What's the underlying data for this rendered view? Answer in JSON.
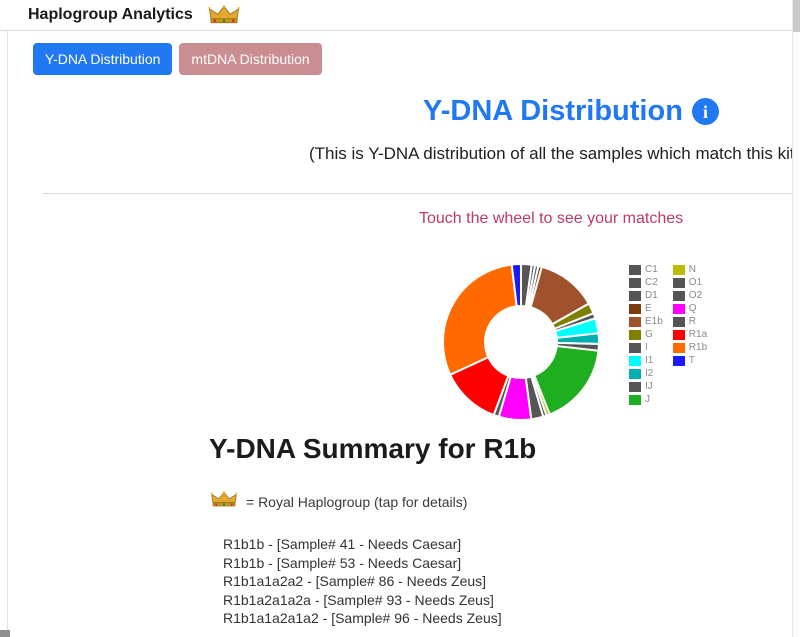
{
  "app": {
    "title": "Haplogroup Analytics"
  },
  "tabs": {
    "ydna": "Y-DNA Distribution",
    "mtdna": "mtDNA Distribution"
  },
  "section": {
    "title": "Y-DNA Distribution",
    "subtitle": "(This is Y-DNA distribution of all the samples which match this kit)"
  },
  "chart_data": {
    "type": "pie",
    "style": "donut",
    "title": "Touch the wheel to see your matches",
    "legend_position": "right",
    "legend_split": 11,
    "units": "percent of matching samples (estimated from arc angles)",
    "series": [
      {
        "name": "C1",
        "value": 2.2,
        "color": "#555555"
      },
      {
        "name": "C2",
        "value": 0.7,
        "color": "#555555"
      },
      {
        "name": "D1",
        "value": 0.7,
        "color": "#555555"
      },
      {
        "name": "E",
        "value": 0.7,
        "color": "#7a3b0e"
      },
      {
        "name": "E1b",
        "value": 12.5,
        "color": "#a0522d"
      },
      {
        "name": "G",
        "value": 2.2,
        "color": "#808000"
      },
      {
        "name": "I",
        "value": 1.1,
        "color": "#555555"
      },
      {
        "name": "I1",
        "value": 3.1,
        "color": "#00ffff"
      },
      {
        "name": "I2",
        "value": 2.2,
        "color": "#00b0b0"
      },
      {
        "name": "IJ",
        "value": 1.4,
        "color": "#555555"
      },
      {
        "name": "J",
        "value": 17.2,
        "color": "#1fae1f"
      },
      {
        "name": "N",
        "value": 0.7,
        "color": "#bdbd00"
      },
      {
        "name": "O1",
        "value": 0.7,
        "color": "#555555"
      },
      {
        "name": "O2",
        "value": 2.5,
        "color": "#555555"
      },
      {
        "name": "Q",
        "value": 6.7,
        "color": "#ff00ff"
      },
      {
        "name": "R",
        "value": 1.1,
        "color": "#555555"
      },
      {
        "name": "R1a",
        "value": 12.4,
        "color": "#ff0000"
      },
      {
        "name": "R1b",
        "value": 30.0,
        "color": "#ff6a00"
      },
      {
        "name": "T",
        "value": 1.9,
        "color": "#1a1aff"
      }
    ]
  },
  "summary": {
    "heading": "Y-DNA Summary for R1b",
    "royal_note": "= Royal Haplogroup (tap for details)",
    "samples": [
      "R1b1b - [Sample# 41 - Needs Caesar]",
      "R1b1b - [Sample# 53 - Needs Caesar]",
      "R1b1a1a2a2 - [Sample# 86 - Needs Zeus]",
      "R1b1a2a1a2a - [Sample# 93 - Needs Zeus]",
      "R1b1a1a2a1a2 - [Sample# 96 - Needs Zeus]"
    ]
  },
  "colors": {
    "accent": "#2178f3",
    "tab_inactive": "#c98d92",
    "chart_title_text": "#bc3a66"
  }
}
